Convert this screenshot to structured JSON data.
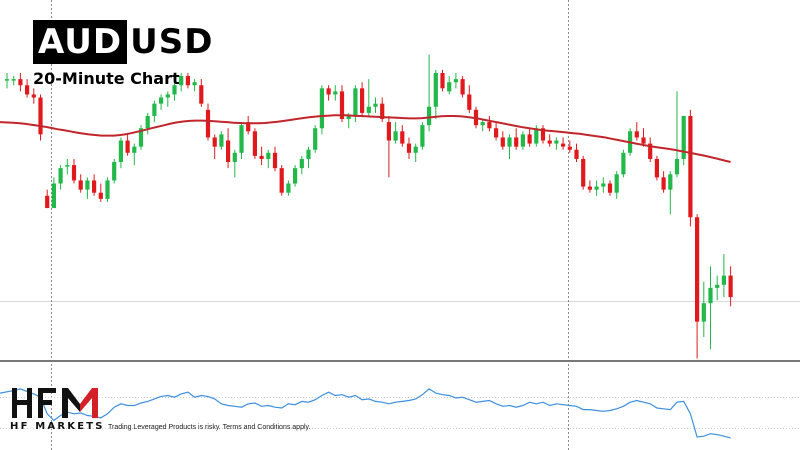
{
  "header": {
    "symbol_highlight": "AUD",
    "symbol_rest": "USD",
    "subtitle": "20-Minute Chart"
  },
  "footer": {
    "brand_tagline": "HF MARKETS",
    "disclaimer": "Trading Leveraged Products is risky. Terms and Conditions apply."
  },
  "logo": {
    "letters": "HFM",
    "accent_color": "#d31f26"
  },
  "colors": {
    "up": "#22b84a",
    "down": "#e0191d",
    "moving_average": "#c0262b",
    "oscillator": "#3d8fe0",
    "separator": "#777777",
    "gridline": "#cfcfcf"
  },
  "chart_data": {
    "type": "candlestick",
    "price_panel": {
      "ylim": [
        0,
        100
      ],
      "moving_average": [
        70,
        69.8,
        69.6,
        69.4,
        69.1,
        68.8,
        68.5,
        68.1,
        67.7,
        67.4,
        67,
        66.6,
        66.3,
        66,
        65.8,
        65.6,
        65.6,
        65.6,
        65.8,
        66.1,
        66.5,
        67,
        67.5,
        68,
        68.5,
        69,
        69.5,
        69.9,
        70.2,
        70.4,
        70.5,
        70.5,
        70.4,
        70.3,
        70.1,
        70,
        69.8,
        69.7,
        69.6,
        69.6,
        69.6,
        69.7,
        69.9,
        70.1,
        70.4,
        70.7,
        71,
        71.3,
        71.6,
        71.8,
        72,
        72.1,
        72.2,
        72.2,
        72.2,
        72.1,
        72,
        71.9,
        71.8,
        71.7,
        71.6,
        71.5,
        71.4,
        71.3,
        71.2,
        71.2,
        71.3,
        71.5,
        71.7,
        71.9,
        72,
        72,
        71.9,
        71.7,
        71.4,
        71.1,
        70.7,
        70.3,
        69.9,
        69.5,
        69.1,
        68.7,
        68.3,
        68,
        67.7,
        67.4,
        67.2,
        67,
        66.8,
        66.6,
        66.4,
        66.2,
        65.9,
        65.6,
        65.3,
        65,
        64.6,
        64.2,
        63.8,
        63.4,
        63,
        62.6,
        62.2,
        61.9,
        61.6,
        61.3,
        61,
        60.6,
        60.2,
        59.8,
        59.4,
        59,
        58.5,
        58,
        57.5,
        57
      ],
      "candles": [
        {
          "o": 84,
          "h": 86,
          "l": 81,
          "c": 84
        },
        {
          "o": 84,
          "h": 85,
          "l": 82,
          "c": 84
        },
        {
          "o": 84,
          "h": 86,
          "l": 80,
          "c": 82
        },
        {
          "o": 82,
          "h": 84,
          "l": 78,
          "c": 79
        },
        {
          "o": 79,
          "h": 81,
          "l": 76,
          "c": 78
        },
        {
          "o": 78,
          "h": 79,
          "l": 64,
          "c": 66
        },
        {
          "o": 46,
          "h": 48,
          "l": 42,
          "c": 42
        },
        {
          "o": 42,
          "h": 52,
          "l": 42,
          "c": 50
        },
        {
          "o": 50,
          "h": 56,
          "l": 48,
          "c": 55
        },
        {
          "o": 56,
          "h": 58,
          "l": 53,
          "c": 56
        },
        {
          "o": 56,
          "h": 58,
          "l": 50,
          "c": 51
        },
        {
          "o": 51,
          "h": 53,
          "l": 47,
          "c": 48
        },
        {
          "o": 48,
          "h": 52,
          "l": 45,
          "c": 51
        },
        {
          "o": 51,
          "h": 53,
          "l": 46,
          "c": 47
        },
        {
          "o": 47,
          "h": 50,
          "l": 44,
          "c": 45
        },
        {
          "o": 45,
          "h": 52,
          "l": 44,
          "c": 51
        },
        {
          "o": 51,
          "h": 58,
          "l": 50,
          "c": 57
        },
        {
          "o": 57,
          "h": 65,
          "l": 55,
          "c": 64
        },
        {
          "o": 64,
          "h": 66,
          "l": 59,
          "c": 60
        },
        {
          "o": 60,
          "h": 63,
          "l": 56,
          "c": 62
        },
        {
          "o": 62,
          "h": 69,
          "l": 61,
          "c": 68
        },
        {
          "o": 68,
          "h": 73,
          "l": 66,
          "c": 72
        },
        {
          "o": 72,
          "h": 77,
          "l": 70,
          "c": 76
        },
        {
          "o": 76,
          "h": 79,
          "l": 74,
          "c": 78
        },
        {
          "o": 78,
          "h": 80,
          "l": 75,
          "c": 79
        },
        {
          "o": 79,
          "h": 83,
          "l": 77,
          "c": 82
        },
        {
          "o": 82,
          "h": 86,
          "l": 80,
          "c": 85
        },
        {
          "o": 85,
          "h": 86,
          "l": 81,
          "c": 82
        },
        {
          "o": 82,
          "h": 84,
          "l": 80,
          "c": 83
        },
        {
          "o": 82,
          "h": 84,
          "l": 75,
          "c": 76
        },
        {
          "o": 74,
          "h": 76,
          "l": 64,
          "c": 65
        },
        {
          "o": 65,
          "h": 66,
          "l": 58,
          "c": 62
        },
        {
          "o": 62,
          "h": 67,
          "l": 61,
          "c": 66
        },
        {
          "o": 64,
          "h": 68,
          "l": 55,
          "c": 57
        },
        {
          "o": 57,
          "h": 61,
          "l": 52,
          "c": 60
        },
        {
          "o": 60,
          "h": 70,
          "l": 58,
          "c": 69
        },
        {
          "o": 70,
          "h": 72,
          "l": 66,
          "c": 67
        },
        {
          "o": 67,
          "h": 68,
          "l": 58,
          "c": 59
        },
        {
          "o": 59,
          "h": 62,
          "l": 56,
          "c": 58
        },
        {
          "o": 58,
          "h": 61,
          "l": 55,
          "c": 60
        },
        {
          "o": 60,
          "h": 62,
          "l": 54,
          "c": 55
        },
        {
          "o": 55,
          "h": 56,
          "l": 46,
          "c": 47
        },
        {
          "o": 47,
          "h": 51,
          "l": 46,
          "c": 50
        },
        {
          "o": 50,
          "h": 56,
          "l": 49,
          "c": 55
        },
        {
          "o": 55,
          "h": 59,
          "l": 53,
          "c": 58
        },
        {
          "o": 58,
          "h": 62,
          "l": 55,
          "c": 61
        },
        {
          "o": 61,
          "h": 69,
          "l": 60,
          "c": 68
        },
        {
          "o": 68,
          "h": 82,
          "l": 66,
          "c": 81
        },
        {
          "o": 81,
          "h": 82,
          "l": 77,
          "c": 79
        },
        {
          "o": 79,
          "h": 82,
          "l": 77,
          "c": 80
        },
        {
          "o": 80,
          "h": 82,
          "l": 70,
          "c": 71
        },
        {
          "o": 71,
          "h": 73,
          "l": 68,
          "c": 72
        },
        {
          "o": 72,
          "h": 82,
          "l": 70,
          "c": 81
        },
        {
          "o": 81,
          "h": 83,
          "l": 72,
          "c": 73
        },
        {
          "o": 73,
          "h": 84,
          "l": 72,
          "c": 75
        },
        {
          "o": 75,
          "h": 78,
          "l": 73,
          "c": 76
        },
        {
          "o": 76,
          "h": 78,
          "l": 70,
          "c": 71
        },
        {
          "o": 70,
          "h": 72,
          "l": 52,
          "c": 64
        },
        {
          "o": 64,
          "h": 70,
          "l": 63,
          "c": 67
        },
        {
          "o": 67,
          "h": 69,
          "l": 62,
          "c": 63
        },
        {
          "o": 63,
          "h": 65,
          "l": 58,
          "c": 60
        },
        {
          "o": 60,
          "h": 63,
          "l": 57,
          "c": 62
        },
        {
          "o": 62,
          "h": 70,
          "l": 61,
          "c": 69
        },
        {
          "o": 69,
          "h": 92,
          "l": 67,
          "c": 75
        },
        {
          "o": 75,
          "h": 87,
          "l": 71,
          "c": 86
        },
        {
          "o": 86,
          "h": 87,
          "l": 80,
          "c": 81
        },
        {
          "o": 80,
          "h": 85,
          "l": 79,
          "c": 83
        },
        {
          "o": 83,
          "h": 86,
          "l": 81,
          "c": 84
        },
        {
          "o": 84,
          "h": 85,
          "l": 78,
          "c": 79
        },
        {
          "o": 79,
          "h": 82,
          "l": 73,
          "c": 74
        },
        {
          "o": 74,
          "h": 75,
          "l": 68,
          "c": 69
        },
        {
          "o": 69,
          "h": 71,
          "l": 67,
          "c": 70
        },
        {
          "o": 70,
          "h": 72,
          "l": 67,
          "c": 68
        },
        {
          "o": 68,
          "h": 70,
          "l": 64,
          "c": 65
        },
        {
          "o": 65,
          "h": 67,
          "l": 61,
          "c": 62
        },
        {
          "o": 62,
          "h": 66,
          "l": 58,
          "c": 65
        },
        {
          "o": 65,
          "h": 68,
          "l": 61,
          "c": 62
        },
        {
          "o": 62,
          "h": 67,
          "l": 61,
          "c": 66
        },
        {
          "o": 66,
          "h": 68,
          "l": 62,
          "c": 63
        },
        {
          "o": 63,
          "h": 69,
          "l": 62,
          "c": 68
        },
        {
          "o": 68,
          "h": 69,
          "l": 63,
          "c": 64
        },
        {
          "o": 64,
          "h": 66,
          "l": 62,
          "c": 63
        },
        {
          "o": 63,
          "h": 65,
          "l": 61,
          "c": 64
        },
        {
          "o": 63,
          "h": 65,
          "l": 61,
          "c": 62
        },
        {
          "o": 62,
          "h": 64,
          "l": 60,
          "c": 61
        },
        {
          "o": 61,
          "h": 63,
          "l": 57,
          "c": 58
        },
        {
          "o": 58,
          "h": 59,
          "l": 48,
          "c": 49
        },
        {
          "o": 49,
          "h": 51,
          "l": 47,
          "c": 48
        },
        {
          "o": 48,
          "h": 51,
          "l": 46,
          "c": 49
        },
        {
          "o": 49,
          "h": 52,
          "l": 47,
          "c": 50
        },
        {
          "o": 50,
          "h": 51,
          "l": 46,
          "c": 47
        },
        {
          "o": 47,
          "h": 54,
          "l": 45,
          "c": 53
        },
        {
          "o": 53,
          "h": 61,
          "l": 52,
          "c": 60
        },
        {
          "o": 60,
          "h": 68,
          "l": 59,
          "c": 67
        },
        {
          "o": 67,
          "h": 70,
          "l": 64,
          "c": 65
        },
        {
          "o": 65,
          "h": 68,
          "l": 62,
          "c": 63
        },
        {
          "o": 63,
          "h": 65,
          "l": 57,
          "c": 58
        },
        {
          "o": 58,
          "h": 59,
          "l": 51,
          "c": 52
        },
        {
          "o": 52,
          "h": 54,
          "l": 47,
          "c": 48
        },
        {
          "o": 48,
          "h": 54,
          "l": 40,
          "c": 53
        },
        {
          "o": 53,
          "h": 80,
          "l": 52,
          "c": 58
        },
        {
          "o": 58,
          "h": 72,
          "l": 56,
          "c": 72
        },
        {
          "o": 72,
          "h": 74,
          "l": 36,
          "c": 39
        },
        {
          "o": 39,
          "h": 40,
          "l": -7,
          "c": 5
        },
        {
          "o": 5,
          "h": 18,
          "l": 0,
          "c": 11
        },
        {
          "o": 11,
          "h": 23,
          "l": -4,
          "c": 16
        },
        {
          "o": 16,
          "h": 20,
          "l": 12,
          "c": 17
        },
        {
          "o": 17,
          "h": 27,
          "l": 13,
          "c": 20
        },
        {
          "o": 20,
          "h": 23,
          "l": 10,
          "c": 13
        }
      ]
    },
    "oscillator": {
      "ylim": [
        0,
        100
      ],
      "values": [
        65,
        68,
        70,
        67,
        64,
        60,
        40,
        32,
        38,
        42,
        40,
        41,
        38,
        37,
        35,
        40,
        48,
        52,
        50,
        50,
        53,
        55,
        58,
        61,
        62,
        60,
        64,
        66,
        60,
        62,
        61,
        58,
        52,
        50,
        49,
        48,
        52,
        53,
        49,
        50,
        48,
        47,
        52,
        51,
        55,
        54,
        57,
        62,
        66,
        62,
        63,
        60,
        62,
        57,
        58,
        55,
        54,
        52,
        54,
        55,
        56,
        58,
        63,
        70,
        65,
        63,
        62,
        59,
        60,
        57,
        54,
        55,
        56,
        52,
        49,
        50,
        48,
        50,
        54,
        52,
        54,
        50,
        52,
        51,
        50,
        49,
        45,
        45,
        44,
        43,
        44,
        46,
        49,
        54,
        56,
        54,
        52,
        47,
        46,
        45,
        54,
        55,
        40,
        12,
        13,
        16,
        15,
        13,
        11
      ]
    }
  }
}
